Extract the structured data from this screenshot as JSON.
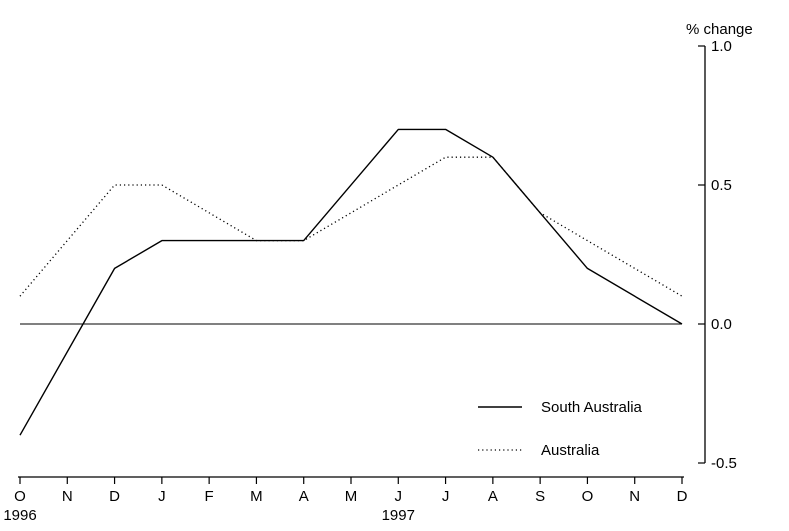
{
  "chart_data": {
    "type": "line",
    "ylabel": "% change",
    "ylim": [
      -0.5,
      1.0
    ],
    "y_ticks": [
      "1.0",
      "0.5",
      "0.0",
      "-0.5"
    ],
    "y_tick_values": [
      1.0,
      0.5,
      0.0,
      -0.5
    ],
    "y_axis_side": "right",
    "x": [
      "O",
      "N",
      "D",
      "J",
      "F",
      "M",
      "A",
      "M",
      "J",
      "J",
      "A",
      "S",
      "O",
      "N",
      "D"
    ],
    "year_labels": [
      {
        "label": "1996",
        "month_index": 0
      },
      {
        "label": "1997",
        "month_index": 8
      }
    ],
    "zero_line": true,
    "grid": false,
    "legend_position": "bottom-right",
    "series": [
      {
        "name": "South Australia",
        "style": "solid",
        "values": [
          -0.4,
          null,
          0.2,
          0.3,
          null,
          0.3,
          0.3,
          null,
          0.7,
          0.7,
          0.6,
          0.4,
          0.2,
          null,
          0.0
        ]
      },
      {
        "name": "Australia",
        "style": "dotted",
        "values": [
          0.1,
          null,
          0.5,
          0.5,
          null,
          0.3,
          0.3,
          null,
          0.5,
          0.6,
          0.6,
          0.4,
          0.3,
          null,
          0.1
        ]
      }
    ]
  }
}
